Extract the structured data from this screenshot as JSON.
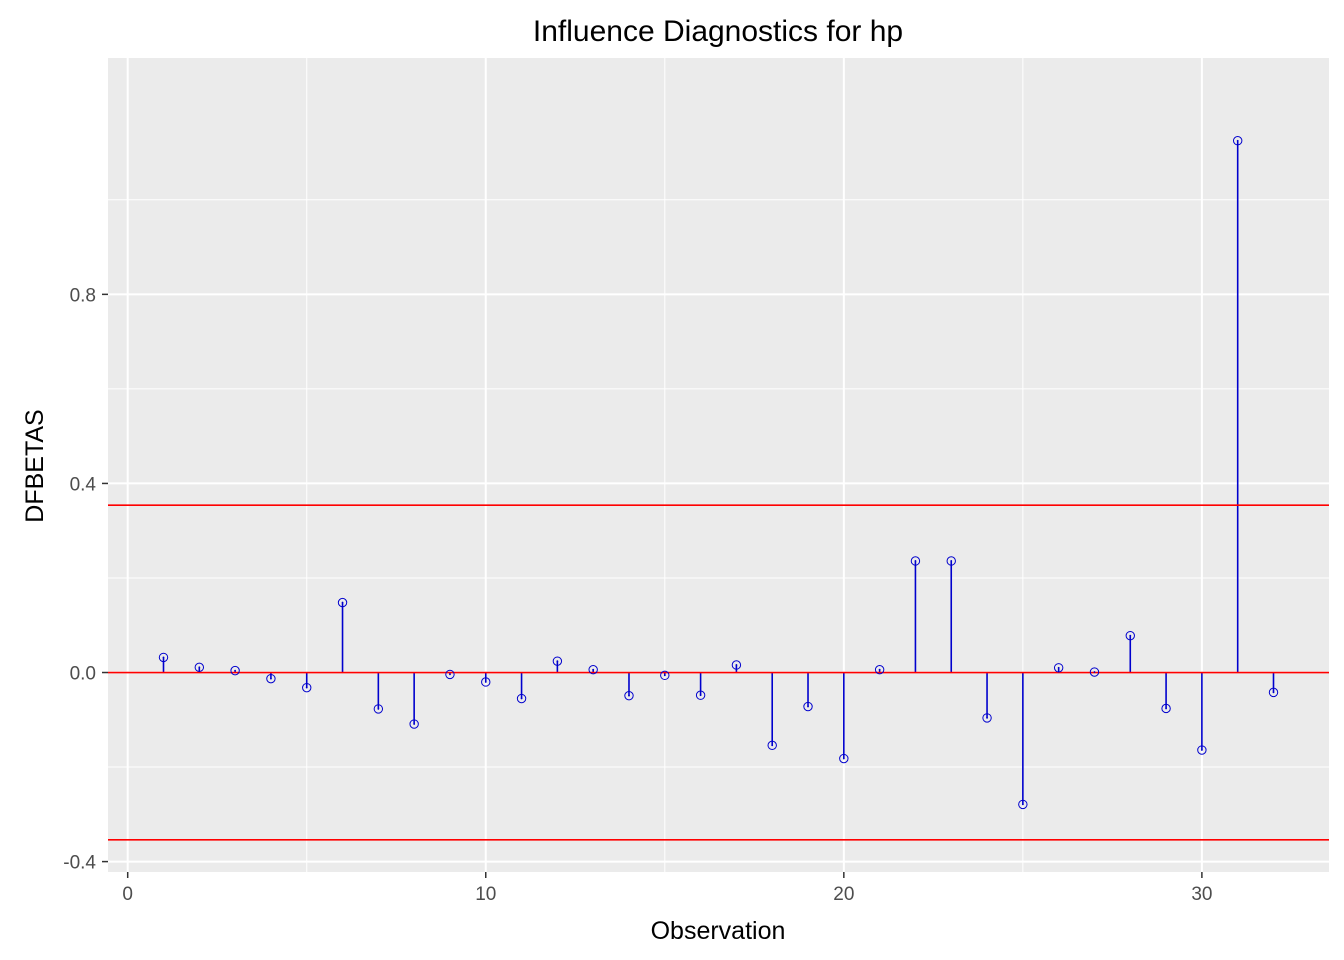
{
  "chart_data": {
    "type": "scatter",
    "title": "Influence Diagnostics for hp",
    "xlabel": "Observation",
    "ylabel": "DFBETAS",
    "xlim": [
      -0.55,
      33.55
    ],
    "ylim": [
      -0.422,
      1.3
    ],
    "x_ticks": [
      0,
      10,
      20,
      30
    ],
    "x_minor_ticks": [
      5,
      15,
      25
    ],
    "y_ticks": [
      -0.4,
      0.0,
      0.4,
      0.8
    ],
    "y_minor_ticks": [
      -0.2,
      0.2,
      0.6,
      1.0
    ],
    "x_tick_labels": [
      "0",
      "10",
      "20",
      "30"
    ],
    "y_tick_labels": [
      "-0.4",
      "0.0",
      "0.4",
      "0.8"
    ],
    "grid": true,
    "x": [
      1,
      2,
      3,
      4,
      5,
      6,
      7,
      8,
      9,
      10,
      11,
      12,
      13,
      14,
      15,
      16,
      17,
      18,
      19,
      20,
      21,
      22,
      23,
      24,
      25,
      26,
      27,
      28,
      29,
      30,
      31,
      32
    ],
    "values": [
      0.032,
      0.011,
      0.004,
      -0.013,
      -0.032,
      0.148,
      -0.077,
      -0.109,
      -0.004,
      -0.02,
      -0.055,
      0.024,
      0.006,
      -0.049,
      -0.006,
      -0.048,
      0.016,
      -0.154,
      -0.072,
      -0.182,
      0.006,
      0.236,
      0.236,
      -0.096,
      -0.279,
      0.01,
      0.001,
      0.078,
      -0.076,
      -0.164,
      1.125,
      -0.042
    ],
    "reference_lines": [
      -0.354,
      0.0,
      0.354
    ],
    "colors": {
      "stem": "#0000cd",
      "point": "#0000cd",
      "reference": "#ff0000",
      "panel": "#ebebeb",
      "grid": "#ffffff"
    }
  }
}
